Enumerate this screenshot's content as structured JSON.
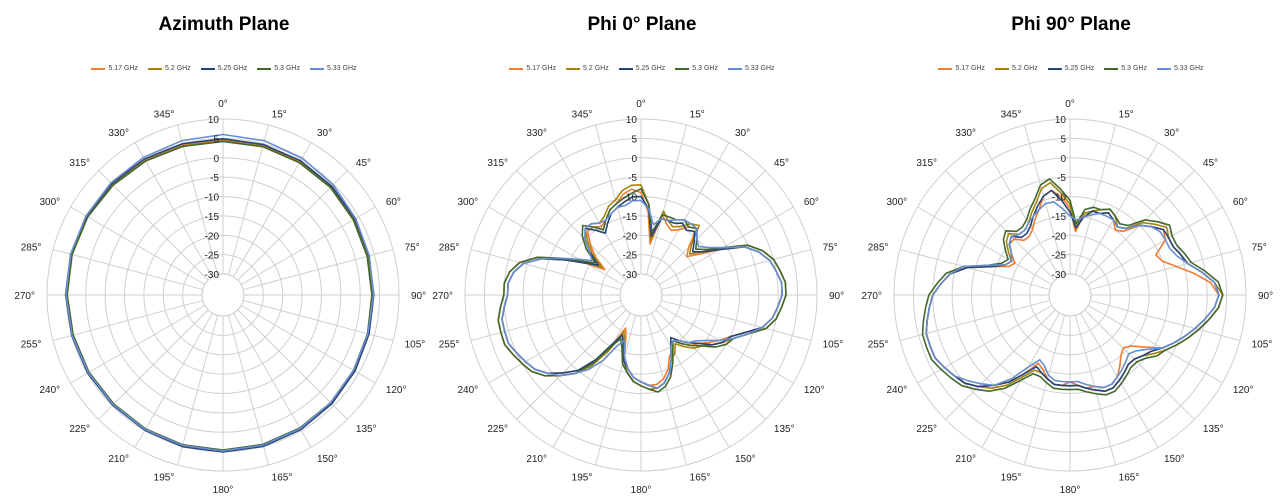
{
  "legend_colors": [
    "#ED7D31",
    "#A5840F",
    "#264478",
    "#43682B",
    "#698ED0"
  ],
  "chart_data": [
    {
      "type": "line",
      "subtype": "polar",
      "title": "Azimuth Plane",
      "radial_ticks": [
        "10",
        "5",
        "0",
        "-5",
        "-10",
        "-15",
        "-20",
        "-25",
        "-30"
      ],
      "angle_ticks": [
        "0°",
        "15°",
        "30°",
        "45°",
        "60°",
        "75°",
        "90°",
        "105°",
        "120°",
        "135°",
        "150°",
        "165°",
        "180°",
        "195°",
        "210°",
        "225°",
        "240°",
        "255°",
        "270°",
        "285°",
        "300°",
        "315°",
        "330°",
        "345°"
      ],
      "rlim": [
        -30,
        10
      ],
      "angles": [
        0,
        15,
        30,
        45,
        60,
        75,
        90,
        105,
        120,
        135,
        150,
        165,
        180,
        195,
        210,
        225,
        240,
        255,
        270,
        285,
        300,
        315,
        330,
        345
      ],
      "series": [
        {
          "name": "5.17 GHz",
          "values": [
            4.5,
            4.5,
            4.3,
            4.0,
            3.6,
            3.3,
            3.2,
            3.3,
            3.6,
            4.0,
            4.4,
            4.7,
            4.8,
            4.8,
            4.6,
            4.5,
            4.6,
            4.7,
            4.9,
            5.0,
            5.0,
            4.9,
            4.7,
            4.6
          ]
        },
        {
          "name": "5.2 GHz",
          "values": [
            4.3,
            4.3,
            4.1,
            3.9,
            3.5,
            3.2,
            3.1,
            3.2,
            3.5,
            3.9,
            4.3,
            4.6,
            4.7,
            4.7,
            4.6,
            4.5,
            4.6,
            4.7,
            4.9,
            5.0,
            5.0,
            4.8,
            4.6,
            4.4
          ]
        },
        {
          "name": "5.25 GHz",
          "values": [
            4.9,
            4.8,
            4.6,
            4.3,
            3.9,
            3.6,
            3.5,
            3.6,
            3.9,
            4.3,
            4.7,
            5.0,
            5.1,
            5.1,
            4.9,
            4.8,
            4.9,
            5.0,
            5.2,
            5.3,
            5.3,
            5.2,
            5.1,
            5.0
          ]
        },
        {
          "name": "5.3 GHz",
          "values": [
            4.2,
            4.2,
            4.0,
            3.8,
            3.4,
            3.1,
            3.0,
            3.2,
            3.5,
            3.9,
            4.2,
            4.5,
            4.6,
            4.6,
            4.5,
            4.4,
            4.5,
            4.6,
            4.8,
            4.9,
            4.9,
            4.7,
            4.5,
            4.3
          ]
        },
        {
          "name": "5.33 GHz",
          "values": [
            6.0,
            5.8,
            5.4,
            4.8,
            4.1,
            3.7,
            3.4,
            3.3,
            3.5,
            3.9,
            4.4,
            4.7,
            4.8,
            4.8,
            4.7,
            4.6,
            4.7,
            4.9,
            5.1,
            5.3,
            5.4,
            5.5,
            5.6,
            5.8
          ]
        }
      ]
    },
    {
      "type": "line",
      "subtype": "polar",
      "title": "Phi 0° Plane",
      "radial_ticks": [
        "10",
        "5",
        "0",
        "-5",
        "-10",
        "-15",
        "-20",
        "-25",
        "-30"
      ],
      "angle_ticks": [
        "0°",
        "15°",
        "30°",
        "45°",
        "60°",
        "75°",
        "90°",
        "105°",
        "120°",
        "135°",
        "150°",
        "165°",
        "180°",
        "195°",
        "210°",
        "225°",
        "240°",
        "255°",
        "270°",
        "285°",
        "300°",
        "315°",
        "330°",
        "345°"
      ],
      "rlim": [
        -30,
        10
      ],
      "angles": [
        0,
        5,
        10,
        15,
        20,
        25,
        30,
        35,
        40,
        45,
        50,
        55,
        60,
        65,
        70,
        75,
        80,
        85,
        90,
        95,
        100,
        105,
        110,
        115,
        120,
        125,
        130,
        135,
        140,
        145,
        150,
        155,
        160,
        165,
        170,
        175,
        180,
        185,
        190,
        195,
        200,
        205,
        210,
        215,
        220,
        225,
        230,
        235,
        240,
        245,
        250,
        255,
        260,
        265,
        270,
        275,
        280,
        285,
        290,
        295,
        300,
        305,
        310,
        315,
        320,
        325,
        330,
        335,
        340,
        345,
        350,
        355
      ],
      "series": [
        {
          "name": "5.17 GHz",
          "values": [
            -9,
            -14,
            -22,
            -14,
            -16,
            -17,
            -16,
            -14,
            -13,
            -18,
            -20,
            -17,
            -12,
            -6,
            -3,
            -1,
            0,
            1,
            1,
            0,
            -1,
            -3,
            -7,
            -10,
            -12,
            -14,
            -16,
            -17,
            -19,
            -21,
            -19,
            -18,
            -15,
            -13,
            -12,
            -12,
            -13,
            -14,
            -16,
            -19,
            -24,
            -26,
            -20,
            -14,
            -10,
            -7,
            -4,
            -2,
            -1,
            0,
            1,
            1,
            1,
            0,
            -1,
            -1,
            -2,
            -4,
            -8,
            -14,
            -19,
            -24,
            -20,
            -17,
            -14,
            -14,
            -15,
            -14,
            -12,
            -11,
            -9,
            -8
          ]
        },
        {
          "name": "5.2 GHz",
          "values": [
            -7,
            -12,
            -21,
            -13,
            -15,
            -16,
            -15,
            -13,
            -12,
            -17,
            -19,
            -16,
            -11,
            -5,
            -2,
            0,
            1,
            2,
            2,
            1,
            0,
            -2,
            -6,
            -9,
            -11,
            -13,
            -15,
            -16,
            -18,
            -20,
            -18,
            -17,
            -14,
            -12,
            -11,
            -11,
            -12,
            -13,
            -15,
            -18,
            -23,
            -25,
            -19,
            -13,
            -9,
            -6,
            -3,
            -1,
            0,
            1,
            2,
            2,
            2,
            1,
            0,
            0,
            -1,
            -3,
            -7,
            -13,
            -18,
            -23,
            -19,
            -16,
            -13,
            -13,
            -14,
            -13,
            -11,
            -10,
            -8,
            -7
          ]
        },
        {
          "name": "5.25 GHz",
          "values": [
            -10,
            -13,
            -20,
            -15,
            -15,
            -15,
            -14,
            -15,
            -14,
            -16,
            -18,
            -16,
            -12,
            -6,
            -3,
            -1,
            0,
            1,
            1,
            0,
            -1,
            -3,
            -7,
            -10,
            -11,
            -13,
            -16,
            -18,
            -20,
            -22,
            -20,
            -17,
            -14,
            -12,
            -11,
            -12,
            -13,
            -14,
            -16,
            -18,
            -22,
            -24,
            -21,
            -15,
            -10,
            -7,
            -4,
            -2,
            -1,
            0,
            1,
            1,
            1,
            0,
            -1,
            -1,
            -2,
            -4,
            -8,
            -14,
            -19,
            -22,
            -18,
            -15,
            -13,
            -15,
            -17,
            -15,
            -13,
            -12,
            -11,
            -10
          ]
        },
        {
          "name": "5.3 GHz",
          "values": [
            -8,
            -12,
            -19,
            -14,
            -14,
            -14,
            -13,
            -14,
            -13,
            -15,
            -17,
            -15,
            -11,
            -5,
            -2,
            0,
            1,
            2,
            2,
            1,
            0,
            -2,
            -6,
            -9,
            -10,
            -12,
            -15,
            -17,
            -19,
            -21,
            -19,
            -16,
            -13,
            -11,
            -10,
            -11,
            -12,
            -13,
            -15,
            -17,
            -21,
            -23,
            -20,
            -14,
            -9,
            -6,
            -3,
            -1,
            0,
            1,
            2,
            2,
            2,
            1,
            0,
            0,
            -1,
            -3,
            -7,
            -13,
            -18,
            -21,
            -17,
            -14,
            -12,
            -14,
            -16,
            -14,
            -12,
            -11,
            -10,
            -9
          ]
        },
        {
          "name": "5.33 GHz",
          "values": [
            -11,
            -13,
            -17,
            -15,
            -15,
            -14,
            -13,
            -13,
            -13,
            -15,
            -16,
            -14,
            -11,
            -6,
            -3,
            -1,
            0,
            1,
            1,
            0,
            -1,
            -3,
            -6,
            -9,
            -12,
            -15,
            -17,
            -18,
            -20,
            -21,
            -20,
            -17,
            -14,
            -12,
            -11,
            -12,
            -13,
            -14,
            -16,
            -19,
            -23,
            -21,
            -16,
            -12,
            -9,
            -6,
            -4,
            -2,
            -1,
            0,
            1,
            1,
            1,
            0,
            -1,
            -1,
            -2,
            -4,
            -8,
            -13,
            -17,
            -20,
            -18,
            -15,
            -13,
            -13,
            -14,
            -14,
            -13,
            -12,
            -12,
            -11
          ]
        }
      ]
    },
    {
      "type": "line",
      "subtype": "polar",
      "title": "Phi 90° Plane",
      "radial_ticks": [
        "10",
        "5",
        "0",
        "-5",
        "-10",
        "-15",
        "-20",
        "-25",
        "-30"
      ],
      "angle_ticks": [
        "0°",
        "15°",
        "30°",
        "45°",
        "60°",
        "75°",
        "90°",
        "105°",
        "120°",
        "135°",
        "150°",
        "165°",
        "180°",
        "195°",
        "210°",
        "225°",
        "240°",
        "255°",
        "270°",
        "285°",
        "300°",
        "315°",
        "330°",
        "345°"
      ],
      "rlim": [
        -30,
        10
      ],
      "angles": [
        0,
        5,
        10,
        15,
        20,
        25,
        30,
        35,
        40,
        45,
        50,
        55,
        60,
        65,
        70,
        75,
        80,
        85,
        90,
        95,
        100,
        105,
        110,
        115,
        120,
        125,
        130,
        135,
        140,
        145,
        150,
        155,
        160,
        165,
        170,
        175,
        180,
        185,
        190,
        195,
        200,
        205,
        210,
        215,
        220,
        225,
        230,
        235,
        240,
        245,
        250,
        255,
        260,
        265,
        270,
        275,
        280,
        285,
        290,
        295,
        300,
        305,
        310,
        315,
        320,
        325,
        330,
        335,
        340,
        345,
        350,
        355
      ],
      "series": [
        {
          "name": "5.17 GHz",
          "values": [
            -13,
            -19,
            -14,
            -13,
            -13,
            -12,
            -13,
            -15,
            -14,
            -10,
            -8,
            -6,
            -7,
            -11,
            -10,
            -7,
            -3,
            1,
            3,
            2,
            0,
            -2,
            -4,
            -6,
            -8,
            -12,
            -15,
            -16,
            -15,
            -13,
            -11,
            -10,
            -10,
            -11,
            -11,
            -12,
            -13,
            -12,
            -12,
            -13,
            -15,
            -16,
            -12,
            -8,
            -5,
            -2,
            0,
            1,
            2,
            3,
            3,
            3,
            2,
            1,
            0,
            -2,
            -4,
            -8,
            -14,
            -18,
            -19,
            -17,
            -15,
            -15,
            -17,
            -17,
            -16,
            -14,
            -12,
            -9,
            -8,
            -10
          ]
        },
        {
          "name": "5.2 GHz",
          "values": [
            -12,
            -18,
            -14,
            -13,
            -12,
            -11,
            -12,
            -14,
            -13,
            -9,
            -7,
            -5,
            -6,
            -6,
            -5,
            -4,
            -1,
            2,
            4,
            3,
            1,
            -1,
            -3,
            -5,
            -7,
            -9,
            -11,
            -12,
            -12,
            -11,
            -10,
            -9,
            -9,
            -10,
            -11,
            -12,
            -12,
            -12,
            -12,
            -13,
            -14,
            -14,
            -11,
            -7,
            -4,
            -2,
            0,
            1,
            2,
            3,
            3,
            3,
            2,
            1,
            0,
            -2,
            -4,
            -8,
            -14,
            -17,
            -18,
            -16,
            -14,
            -13,
            -15,
            -15,
            -14,
            -12,
            -10,
            -7,
            -6,
            -9
          ]
        },
        {
          "name": "5.25 GHz",
          "values": [
            -14,
            -18,
            -15,
            -13,
            -13,
            -12,
            -13,
            -14,
            -13,
            -10,
            -8,
            -6,
            -6,
            -6,
            -5,
            -4,
            -1,
            2,
            3,
            2,
            0,
            -2,
            -4,
            -6,
            -8,
            -10,
            -11,
            -12,
            -12,
            -11,
            -10,
            -9,
            -9,
            -10,
            -11,
            -12,
            -12,
            -12,
            -12,
            -13,
            -14,
            -15,
            -12,
            -8,
            -5,
            -2,
            0,
            1,
            2,
            3,
            3,
            3,
            2,
            1,
            0,
            -2,
            -4,
            -8,
            -14,
            -17,
            -18,
            -17,
            -15,
            -14,
            -16,
            -16,
            -15,
            -13,
            -11,
            -9,
            -8,
            -11
          ]
        },
        {
          "name": "5.3 GHz",
          "values": [
            -11,
            -17,
            -13,
            -12,
            -12,
            -11,
            -12,
            -13,
            -12,
            -8,
            -6,
            -4,
            -5,
            -5,
            -4,
            -3,
            0,
            3,
            4,
            3,
            1,
            -1,
            -3,
            -5,
            -7,
            -8,
            -10,
            -11,
            -11,
            -10,
            -9,
            -8,
            -8,
            -9,
            -10,
            -11,
            -11,
            -11,
            -11,
            -12,
            -13,
            -13,
            -10,
            -6,
            -3,
            -1,
            1,
            2,
            3,
            4,
            4,
            4,
            3,
            2,
            1,
            -1,
            -3,
            -7,
            -13,
            -16,
            -17,
            -15,
            -13,
            -12,
            -14,
            -14,
            -13,
            -11,
            -9,
            -6,
            -5,
            -8
          ]
        },
        {
          "name": "5.33 GHz",
          "values": [
            -15,
            -16,
            -15,
            -14,
            -13,
            -13,
            -13,
            -14,
            -13,
            -10,
            -8,
            -7,
            -7,
            -7,
            -6,
            -4,
            -1,
            2,
            3,
            2,
            0,
            -2,
            -4,
            -6,
            -8,
            -11,
            -13,
            -14,
            -13,
            -12,
            -11,
            -10,
            -10,
            -11,
            -12,
            -13,
            -13,
            -13,
            -13,
            -14,
            -16,
            -17,
            -14,
            -9,
            -5,
            -3,
            -1,
            1,
            2,
            3,
            3,
            3,
            2,
            1,
            0,
            -2,
            -4,
            -7,
            -13,
            -17,
            -18,
            -17,
            -15,
            -14,
            -15,
            -15,
            -14,
            -13,
            -12,
            -11,
            -11,
            -13
          ]
        }
      ]
    }
  ]
}
